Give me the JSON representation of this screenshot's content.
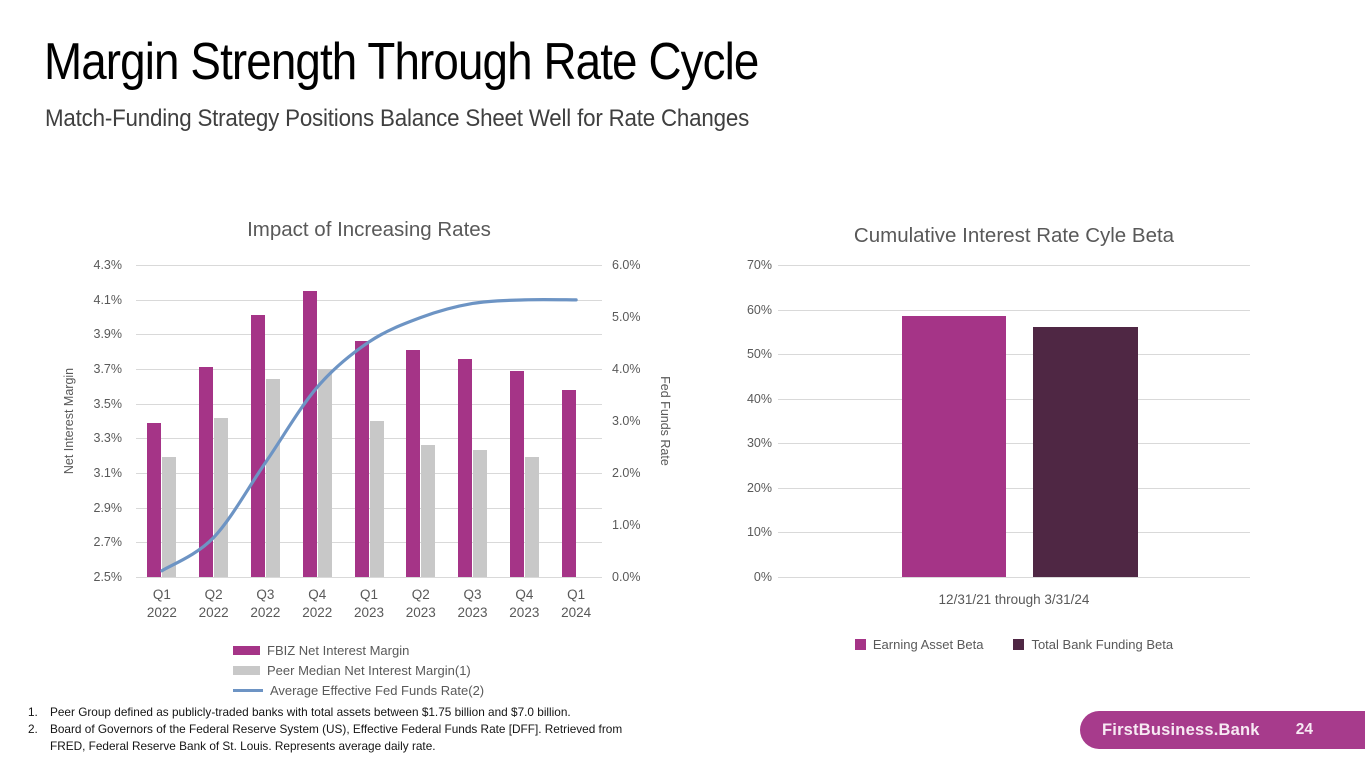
{
  "slide": {
    "title": "Margin Strength Through Rate Cycle",
    "subtitle": "Match-Funding Strategy Positions Balance Sheet Well for Rate Changes",
    "brand": "FirstBusiness.Bank",
    "page_number": "24",
    "brand_color": "#a73b8c"
  },
  "footnotes": [
    {
      "num": "1.",
      "text": "Peer Group defined as publicly-traded banks with total assets between $1.75 billion and $7.0 billion."
    },
    {
      "num": "2.",
      "text": "Board of Governors of the Federal Reserve System (US), Effective Federal Funds Rate [DFF]. Retrieved from FRED, Federal Reserve Bank of St. Louis. Represents average daily rate."
    }
  ],
  "chart_data": [
    {
      "type": "bar",
      "subtype": "combo-bar-line",
      "title": "Impact of Increasing Rates",
      "categories": [
        "Q1\n2022",
        "Q2\n2022",
        "Q3\n2022",
        "Q4\n2022",
        "Q1\n2023",
        "Q2\n2023",
        "Q3\n2023",
        "Q4\n2023",
        "Q1\n2024"
      ],
      "series": [
        {
          "name": "FBIZ Net Interest Margin",
          "render": "bar",
          "axis": "left",
          "color": "#a53487",
          "values": [
            3.39,
            3.71,
            4.01,
            4.15,
            3.86,
            3.81,
            3.76,
            3.69,
            3.58
          ]
        },
        {
          "name": "Peer Median Net Interest Margin(1)",
          "render": "bar",
          "axis": "left",
          "color": "#c8c8c8",
          "values": [
            3.19,
            3.42,
            3.64,
            3.7,
            3.4,
            3.26,
            3.23,
            3.19,
            null
          ]
        },
        {
          "name": "Average Effective Fed Funds Rate(2)",
          "render": "line",
          "axis": "right",
          "color": "#6d94c4",
          "values": [
            0.12,
            0.76,
            2.2,
            3.65,
            4.52,
            4.99,
            5.26,
            5.33,
            5.33
          ]
        }
      ],
      "left_axis": {
        "label": "Net Interest Margin",
        "min": 2.5,
        "max": 4.3,
        "step": 0.2,
        "unit": "%",
        "decimals": 1
      },
      "right_axis": {
        "label": "Fed Funds Rate",
        "min": 0.0,
        "max": 6.0,
        "step": 1.0,
        "unit": "%",
        "decimals": 1
      },
      "grid": true,
      "legend_position": "bottom-left"
    },
    {
      "type": "bar",
      "title": "Cumulative Interest Rate Cyle Beta",
      "categories": [
        "12/31/21 through 3/31/24"
      ],
      "series": [
        {
          "name": "Earning Asset Beta",
          "color": "#a53487",
          "values": [
            58.5
          ]
        },
        {
          "name": "Total Bank Funding Beta",
          "color": "#4f2744",
          "values": [
            56.0
          ]
        }
      ],
      "y_axis": {
        "min": 0,
        "max": 70,
        "step": 10,
        "unit": "%",
        "decimals": 0
      },
      "grid": true,
      "legend_position": "bottom-center"
    }
  ]
}
